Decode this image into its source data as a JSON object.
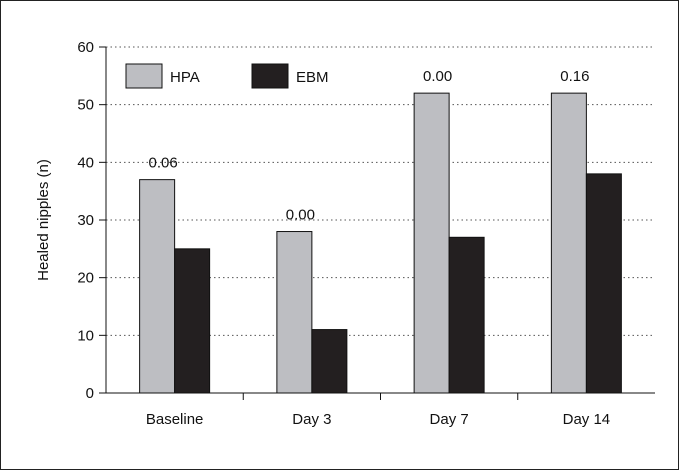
{
  "chart_data": {
    "type": "bar",
    "categories": [
      "Baseline",
      "Day 3",
      "Day 7",
      "Day 14"
    ],
    "series": [
      {
        "name": "HPA",
        "values": [
          37,
          28,
          52,
          52
        ],
        "color": "#bdbec2"
      },
      {
        "name": "EBM",
        "values": [
          25,
          11,
          27,
          38
        ],
        "color": "#231f20"
      }
    ],
    "annotations": [
      "0.06",
      "0.00",
      "0.00",
      "0.16"
    ],
    "title": "",
    "xlabel": "",
    "ylabel": "Healed nipples (n)",
    "ylim": [
      0,
      60
    ],
    "yticks": [
      0,
      10,
      20,
      30,
      40,
      50,
      60
    ],
    "grid": "horizontal-dotted",
    "legend_position": "top-left"
  }
}
